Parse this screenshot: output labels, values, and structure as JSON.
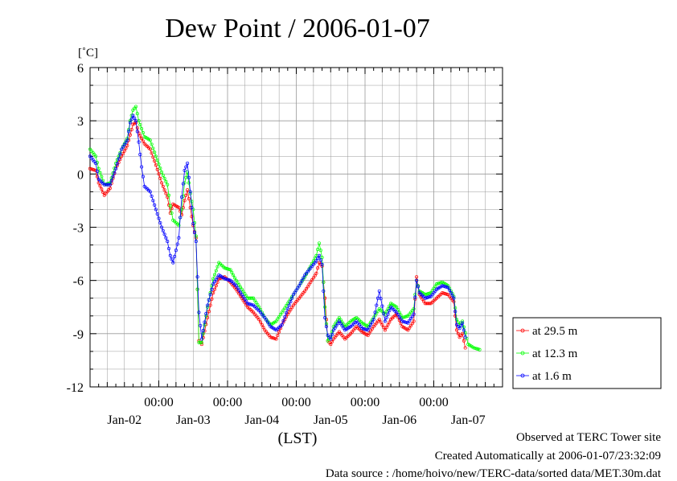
{
  "chart_data": {
    "type": "line",
    "title": "Dew Point / 2006-01-07",
    "ylabel": "[˚C]",
    "xlabel": "(LST)",
    "ylim": [
      -12,
      6
    ],
    "y_ticks": [
      6,
      3,
      0,
      -3,
      -6,
      -9,
      -12
    ],
    "x_range_hours": [
      0,
      144
    ],
    "x_time_ticks": [
      "00:00",
      "00:00",
      "00:00",
      "00:00",
      "00:00"
    ],
    "x_date_labels": [
      "Jan-02",
      "Jan-03",
      "Jan-04",
      "Jan-05",
      "Jan-06",
      "Jan-07"
    ],
    "grid": true,
    "legend_position": "right",
    "series": [
      {
        "name": "at 29.5 m",
        "color": "#ff0000",
        "points": [
          [
            0,
            0.3
          ],
          [
            2,
            0.2
          ],
          [
            3,
            -0.5
          ],
          [
            5,
            -1.2
          ],
          [
            7,
            -0.8
          ],
          [
            9,
            0.3
          ],
          [
            11,
            1.0
          ],
          [
            13,
            1.6
          ],
          [
            14,
            2.2
          ],
          [
            15,
            2.8
          ],
          [
            16,
            2.9
          ],
          [
            17,
            2.3
          ],
          [
            19,
            1.7
          ],
          [
            21,
            1.4
          ],
          [
            23,
            0.5
          ],
          [
            25,
            -0.5
          ],
          [
            27,
            -1.3
          ],
          [
            28,
            -2.2
          ],
          [
            29,
            -1.7
          ],
          [
            31,
            -1.9
          ],
          [
            32,
            -2.3
          ],
          [
            33,
            -1.5
          ],
          [
            34,
            -0.9
          ],
          [
            35,
            -1.9
          ],
          [
            36,
            -2.9
          ],
          [
            37,
            -3.6
          ],
          [
            38,
            -9.4
          ],
          [
            39,
            -9.6
          ],
          [
            41,
            -8.1
          ],
          [
            43,
            -6.7
          ],
          [
            45,
            -5.9
          ],
          [
            47,
            -5.8
          ],
          [
            49,
            -6.1
          ],
          [
            51,
            -6.5
          ],
          [
            53,
            -7.0
          ],
          [
            55,
            -7.5
          ],
          [
            57,
            -7.8
          ],
          [
            59,
            -8.2
          ],
          [
            61,
            -8.8
          ],
          [
            63,
            -9.2
          ],
          [
            65,
            -9.3
          ],
          [
            67,
            -8.5
          ],
          [
            69,
            -7.9
          ],
          [
            71,
            -7.4
          ],
          [
            73,
            -7.0
          ],
          [
            75,
            -6.6
          ],
          [
            77,
            -6.1
          ],
          [
            79,
            -5.6
          ],
          [
            80,
            -5.0
          ],
          [
            81,
            -5.2
          ],
          [
            82,
            -7.0
          ],
          [
            83,
            -9.4
          ],
          [
            84,
            -9.6
          ],
          [
            85,
            -9.3
          ],
          [
            87,
            -8.9
          ],
          [
            89,
            -9.3
          ],
          [
            91,
            -9.0
          ],
          [
            93,
            -8.6
          ],
          [
            95,
            -8.9
          ],
          [
            97,
            -9.1
          ],
          [
            99,
            -8.6
          ],
          [
            101,
            -8.2
          ],
          [
            103,
            -8.8
          ],
          [
            105,
            -8.2
          ],
          [
            107,
            -7.9
          ],
          [
            109,
            -8.6
          ],
          [
            111,
            -8.8
          ],
          [
            113,
            -8.3
          ],
          [
            114,
            -5.8
          ],
          [
            115,
            -6.8
          ],
          [
            117,
            -7.3
          ],
          [
            119,
            -7.3
          ],
          [
            121,
            -7.0
          ],
          [
            123,
            -6.7
          ],
          [
            125,
            -6.8
          ],
          [
            127,
            -7.2
          ],
          [
            128,
            -8.8
          ],
          [
            129,
            -9.2
          ],
          [
            130,
            -9.0
          ],
          [
            131,
            -9.8
          ]
        ]
      },
      {
        "name": "at 12.3 m",
        "color": "#00ff00",
        "points": [
          [
            0,
            1.4
          ],
          [
            2,
            1.0
          ],
          [
            3,
            0.3
          ],
          [
            5,
            -0.6
          ],
          [
            7,
            -0.5
          ],
          [
            9,
            0.6
          ],
          [
            11,
            1.4
          ],
          [
            13,
            2.0
          ],
          [
            14,
            3.0
          ],
          [
            15,
            3.6
          ],
          [
            16,
            3.8
          ],
          [
            17,
            3.0
          ],
          [
            19,
            2.1
          ],
          [
            21,
            1.9
          ],
          [
            23,
            1.0
          ],
          [
            25,
            0.1
          ],
          [
            27,
            -0.6
          ],
          [
            28,
            -1.8
          ],
          [
            29,
            -2.6
          ],
          [
            31,
            -2.9
          ],
          [
            32,
            -2.0
          ],
          [
            33,
            -0.5
          ],
          [
            34,
            0.1
          ],
          [
            35,
            -1.1
          ],
          [
            36,
            -2.0
          ],
          [
            37,
            -3.5
          ],
          [
            38,
            -9.5
          ],
          [
            39,
            -9.5
          ],
          [
            41,
            -7.5
          ],
          [
            43,
            -5.9
          ],
          [
            45,
            -5.0
          ],
          [
            47,
            -5.3
          ],
          [
            49,
            -5.4
          ],
          [
            51,
            -6.0
          ],
          [
            53,
            -6.5
          ],
          [
            55,
            -7.0
          ],
          [
            57,
            -7.0
          ],
          [
            59,
            -7.5
          ],
          [
            61,
            -8.1
          ],
          [
            63,
            -8.5
          ],
          [
            65,
            -8.3
          ],
          [
            67,
            -7.8
          ],
          [
            69,
            -7.3
          ],
          [
            71,
            -6.8
          ],
          [
            73,
            -6.3
          ],
          [
            75,
            -5.8
          ],
          [
            77,
            -5.2
          ],
          [
            79,
            -4.6
          ],
          [
            80,
            -3.9
          ],
          [
            81,
            -4.7
          ],
          [
            82,
            -7.5
          ],
          [
            83,
            -9.4
          ],
          [
            84,
            -9.2
          ],
          [
            85,
            -8.6
          ],
          [
            87,
            -8.1
          ],
          [
            89,
            -8.6
          ],
          [
            91,
            -8.3
          ],
          [
            93,
            -8.1
          ],
          [
            95,
            -8.4
          ],
          [
            97,
            -8.6
          ],
          [
            99,
            -8.1
          ],
          [
            101,
            -7.6
          ],
          [
            103,
            -7.9
          ],
          [
            105,
            -7.3
          ],
          [
            107,
            -7.5
          ],
          [
            109,
            -8.1
          ],
          [
            111,
            -8.0
          ],
          [
            113,
            -7.6
          ],
          [
            114,
            -6.0
          ],
          [
            115,
            -6.6
          ],
          [
            117,
            -6.8
          ],
          [
            119,
            -6.7
          ],
          [
            121,
            -6.2
          ],
          [
            123,
            -6.1
          ],
          [
            125,
            -6.3
          ],
          [
            127,
            -6.9
          ],
          [
            128,
            -8.2
          ],
          [
            129,
            -8.5
          ],
          [
            130,
            -8.3
          ],
          [
            132,
            -9.6
          ],
          [
            134,
            -9.8
          ],
          [
            136,
            -9.9
          ]
        ]
      },
      {
        "name": "at 1.6 m",
        "color": "#0000ff",
        "points": [
          [
            0,
            1.0
          ],
          [
            2,
            0.6
          ],
          [
            3,
            -0.3
          ],
          [
            5,
            -0.6
          ],
          [
            7,
            -0.6
          ],
          [
            9,
            0.3
          ],
          [
            11,
            1.4
          ],
          [
            13,
            1.9
          ],
          [
            14,
            2.9
          ],
          [
            15,
            3.3
          ],
          [
            16,
            3.0
          ],
          [
            17,
            1.8
          ],
          [
            18,
            0.4
          ],
          [
            19,
            -0.7
          ],
          [
            21,
            -1.0
          ],
          [
            23,
            -2.0
          ],
          [
            25,
            -3.0
          ],
          [
            27,
            -3.8
          ],
          [
            28,
            -4.6
          ],
          [
            29,
            -5.0
          ],
          [
            30,
            -4.3
          ],
          [
            31,
            -3.6
          ],
          [
            32,
            -1.3
          ],
          [
            33,
            0.2
          ],
          [
            34,
            0.6
          ],
          [
            35,
            -1.0
          ],
          [
            36,
            -2.8
          ],
          [
            37,
            -3.8
          ],
          [
            38,
            -7.8
          ],
          [
            39,
            -9.3
          ],
          [
            41,
            -7.4
          ],
          [
            43,
            -6.2
          ],
          [
            45,
            -5.7
          ],
          [
            47,
            -5.9
          ],
          [
            49,
            -6.0
          ],
          [
            51,
            -6.3
          ],
          [
            53,
            -6.8
          ],
          [
            55,
            -7.3
          ],
          [
            57,
            -7.4
          ],
          [
            59,
            -7.7
          ],
          [
            61,
            -8.1
          ],
          [
            63,
            -8.6
          ],
          [
            65,
            -8.8
          ],
          [
            67,
            -8.5
          ],
          [
            69,
            -7.6
          ],
          [
            71,
            -6.8
          ],
          [
            73,
            -6.3
          ],
          [
            75,
            -5.7
          ],
          [
            77,
            -5.3
          ],
          [
            79,
            -4.9
          ],
          [
            80,
            -4.6
          ],
          [
            81,
            -5.1
          ],
          [
            82,
            -8.1
          ],
          [
            83,
            -9.1
          ],
          [
            84,
            -9.3
          ],
          [
            85,
            -8.8
          ],
          [
            87,
            -8.3
          ],
          [
            89,
            -8.8
          ],
          [
            91,
            -8.6
          ],
          [
            93,
            -8.3
          ],
          [
            95,
            -8.7
          ],
          [
            97,
            -8.8
          ],
          [
            99,
            -8.2
          ],
          [
            101,
            -6.6
          ],
          [
            103,
            -8.3
          ],
          [
            105,
            -7.5
          ],
          [
            107,
            -7.8
          ],
          [
            109,
            -8.3
          ],
          [
            111,
            -8.4
          ],
          [
            113,
            -7.9
          ],
          [
            114,
            -6.0
          ],
          [
            115,
            -6.7
          ],
          [
            117,
            -7.0
          ],
          [
            119,
            -6.9
          ],
          [
            121,
            -6.5
          ],
          [
            123,
            -6.3
          ],
          [
            125,
            -6.4
          ],
          [
            127,
            -7.0
          ],
          [
            128,
            -8.5
          ],
          [
            129,
            -8.7
          ],
          [
            130,
            -8.4
          ],
          [
            131,
            -9.2
          ]
        ]
      }
    ]
  },
  "footer": {
    "observed": "Observed at TERC Tower site",
    "created": "Created Automatically at 2006-01-07/23:32:09",
    "source": "Data source : /home/hoivo/new/TERC-data/sorted  data/MET.30m.dat"
  }
}
